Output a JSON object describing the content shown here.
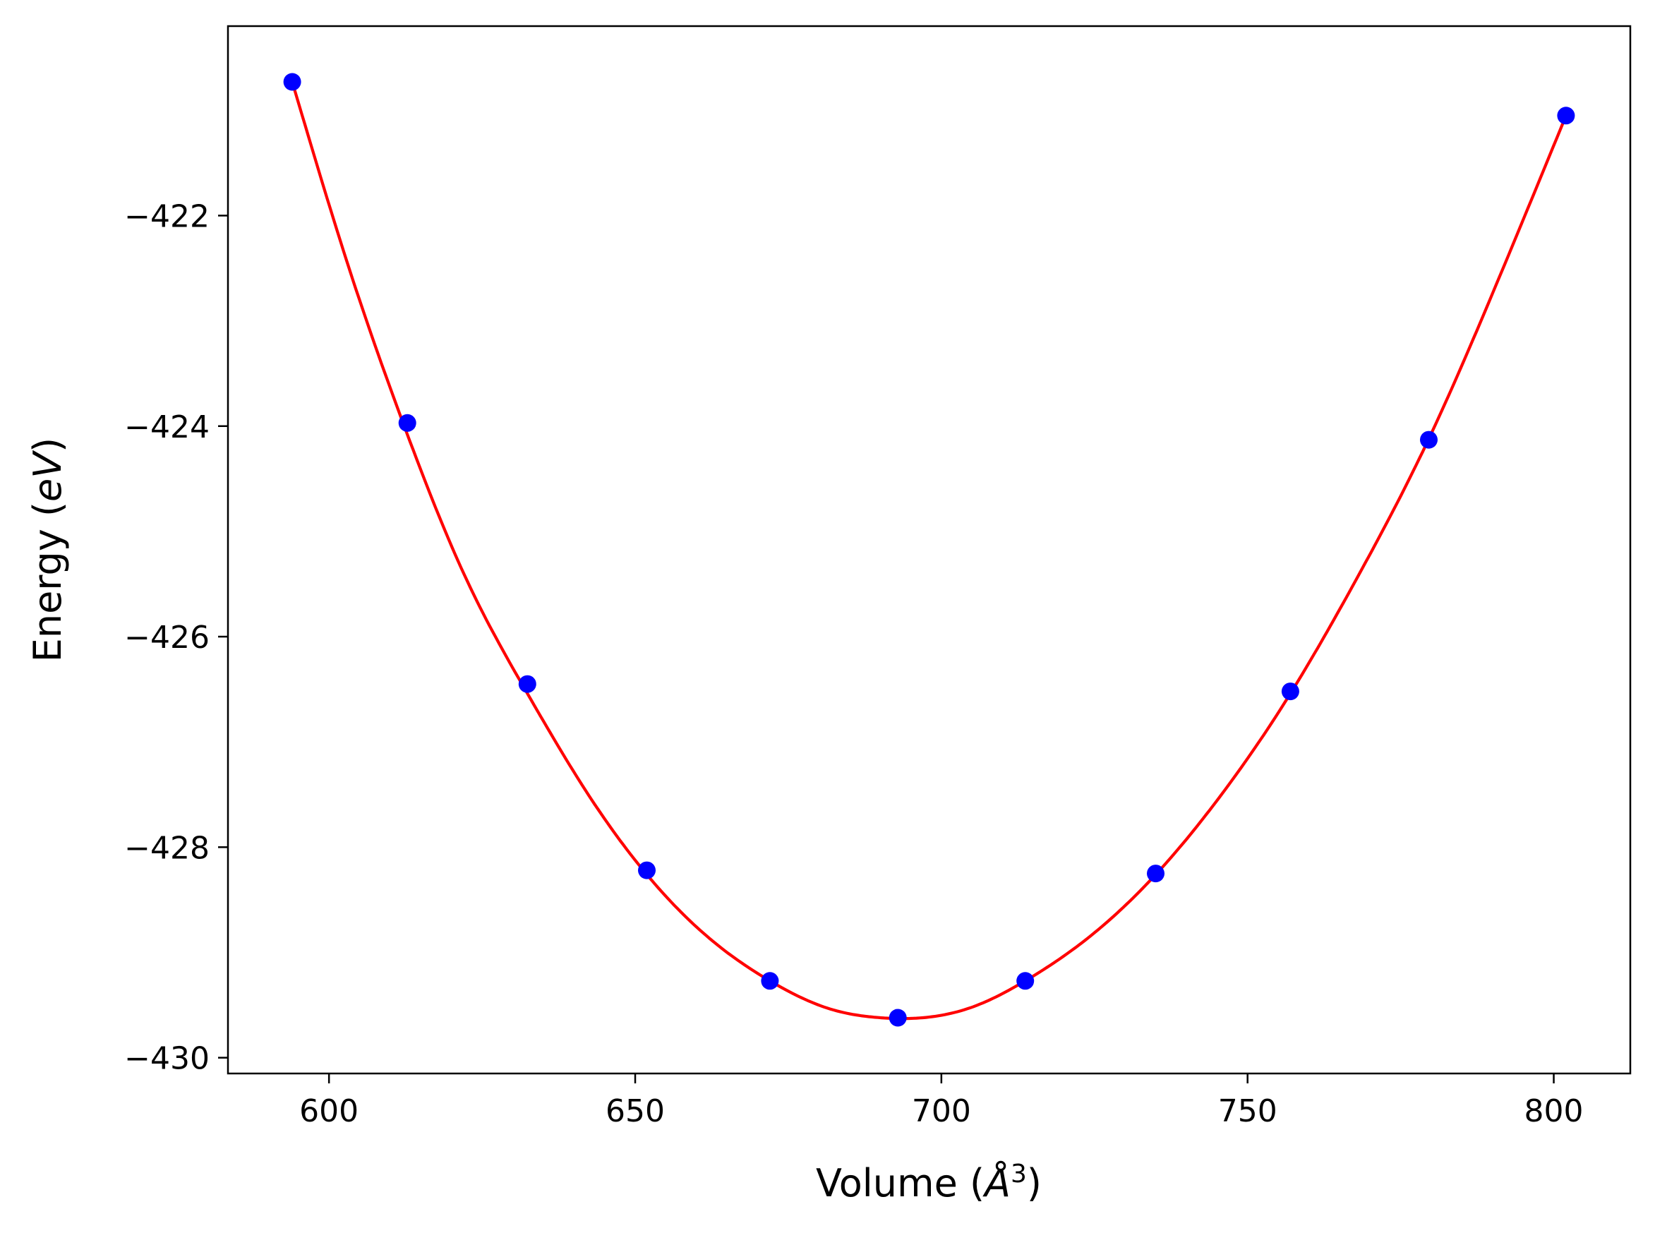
{
  "chart_data": {
    "type": "line",
    "title": "",
    "xlabel": "Volume",
    "xlabel_unit": "Å",
    "xlabel_unit_exp": "3",
    "ylabel": "Energy",
    "ylabel_unit": "eV",
    "xlim": [
      583.5,
      812.5
    ],
    "ylim": [
      -430.15,
      -420.2
    ],
    "xticks": [
      600,
      650,
      700,
      750,
      800
    ],
    "yticks": [
      -422,
      -424,
      -426,
      -428,
      -430
    ],
    "xtick_labels": [
      "600",
      "650",
      "700",
      "750",
      "800"
    ],
    "ytick_labels": [
      "−422",
      "−424",
      "−426",
      "−428",
      "−430"
    ],
    "grid": false,
    "series": [
      {
        "kind": "fit-curve",
        "color": "#ff0000",
        "x": [
          594.0,
          603.0,
          612.8,
          622.0,
          632.4,
          642.0,
          651.9,
          662.0,
          672.0,
          682.0,
          690.0,
          697.0,
          705.0,
          713.7,
          724.0,
          735.0,
          746.0,
          757.0,
          768.0,
          779.6,
          790.0,
          802.0
        ],
        "y": [
          -420.73,
          -422.45,
          -424.08,
          -425.4,
          -426.54,
          -427.47,
          -428.26,
          -428.86,
          -429.27,
          -429.54,
          -429.62,
          -429.62,
          -429.52,
          -429.27,
          -428.86,
          -428.26,
          -427.48,
          -426.54,
          -425.43,
          -424.12,
          -422.74,
          -421.05
        ]
      },
      {
        "kind": "data-points",
        "color": "#0000ff",
        "x": [
          594.0,
          612.8,
          632.4,
          651.9,
          672.0,
          692.9,
          713.7,
          735.0,
          757.0,
          779.6,
          802.0
        ],
        "y": [
          -420.73,
          -423.97,
          -426.45,
          -428.22,
          -429.27,
          -429.62,
          -429.27,
          -428.25,
          -426.52,
          -424.13,
          -421.05
        ]
      }
    ]
  }
}
